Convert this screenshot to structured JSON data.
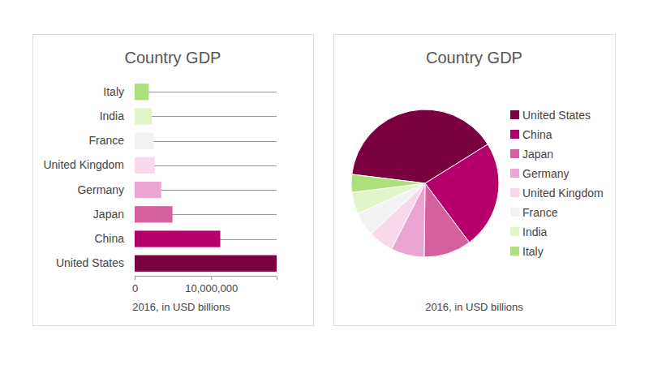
{
  "chart_data": [
    {
      "type": "bar",
      "title": "Country GDP",
      "x_label": "2016, in USD billions",
      "orientation": "horizontal",
      "categories": [
        "United States",
        "China",
        "Japan",
        "Germany",
        "United Kingdom",
        "France",
        "India",
        "Italy"
      ],
      "values": [
        18569100,
        11199145,
        4939384,
        3466757,
        2618886,
        2465454,
        2263792,
        1849970
      ],
      "colors": [
        "#7a0040",
        "#b5006b",
        "#d4609e",
        "#eaa5d2",
        "#fad8ec",
        "#f2f2f2",
        "#e1f5c8",
        "#ade07a"
      ],
      "xlim": [
        0,
        18569100
      ],
      "xticks": [
        0,
        {
          "value": 10000000,
          "label": "10,000,000"
        }
      ]
    },
    {
      "type": "pie",
      "title": "Country GDP",
      "subtitle": "2016, in USD billions",
      "legend": "right",
      "categories": [
        "United States",
        "China",
        "Japan",
        "Germany",
        "United Kingdom",
        "France",
        "India",
        "Italy"
      ],
      "values": [
        18569100,
        11199145,
        4939384,
        3466757,
        2618886,
        2465454,
        2263792,
        1849970
      ],
      "colors": [
        "#7a0040",
        "#b5006b",
        "#d4609e",
        "#eaa5d2",
        "#fad8ec",
        "#f2f2f2",
        "#e1f5c8",
        "#ade07a"
      ]
    }
  ]
}
